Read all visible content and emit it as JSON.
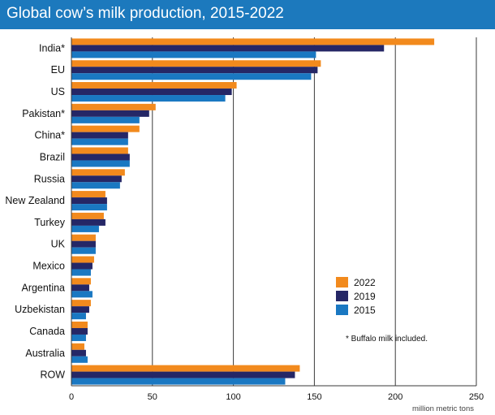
{
  "header": {
    "title": "Global cow’s milk production, 2015-2022"
  },
  "chart_data": {
    "type": "bar",
    "orientation": "horizontal",
    "title": "Global cow’s milk production, 2015-2022",
    "unit_label": "million metric tons",
    "xlim": [
      0,
      250
    ],
    "ticks": [
      0,
      50,
      100,
      150,
      200,
      250
    ],
    "grid": true,
    "legend_position": "lower-right",
    "categories": [
      "India*",
      "EU",
      "US",
      "Pakistan*",
      "China*",
      "Brazil",
      "Russia",
      "New Zealand",
      "Turkey",
      "UK",
      "Mexico",
      "Argentina",
      "Uzbekistan",
      "Canada",
      "Australia",
      "ROW"
    ],
    "series": [
      {
        "name": "2022",
        "color": "#f28a1d",
        "values": [
          224,
          154,
          102,
          52,
          42,
          35,
          33,
          21,
          20,
          15,
          14,
          12,
          12,
          10,
          8,
          141
        ]
      },
      {
        "name": "2019",
        "color": "#252766",
        "values": [
          193,
          152,
          99,
          48,
          35,
          36,
          31,
          22,
          21,
          15,
          13,
          11,
          11,
          10,
          9,
          138
        ]
      },
      {
        "name": "2015",
        "color": "#1a78c2",
        "values": [
          151,
          148,
          95,
          42,
          35,
          36,
          30,
          22,
          17,
          15,
          12,
          13,
          9,
          9,
          10,
          132
        ]
      }
    ],
    "note": "* Buffalo milk included."
  }
}
